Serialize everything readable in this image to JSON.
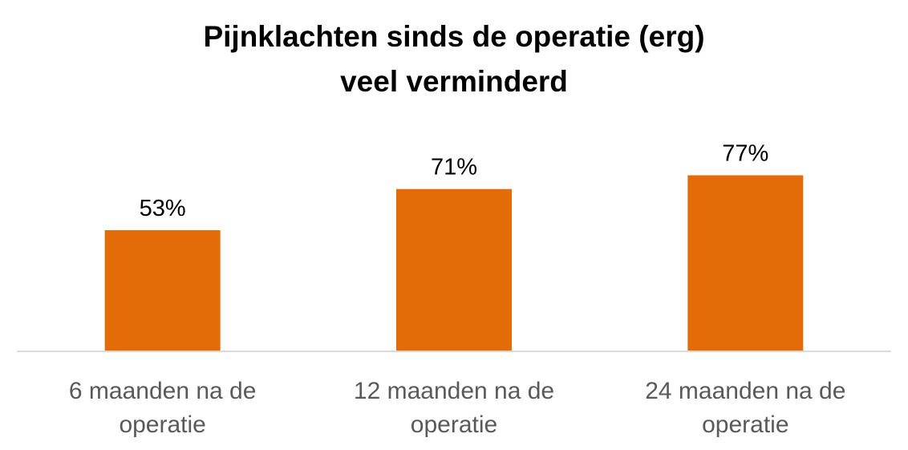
{
  "chart_data": {
    "type": "bar",
    "title": "Pijnklachten sinds de operatie (erg) veel verminderd",
    "categories": [
      "6 maanden na de operatie",
      "12 maanden na de operatie",
      "24 maanden na de operatie"
    ],
    "values": [
      53,
      71,
      77
    ],
    "value_labels": [
      "53%",
      "71%",
      "77%"
    ],
    "color": "#e36c09",
    "ylim": [
      0,
      100
    ],
    "grid": false
  }
}
